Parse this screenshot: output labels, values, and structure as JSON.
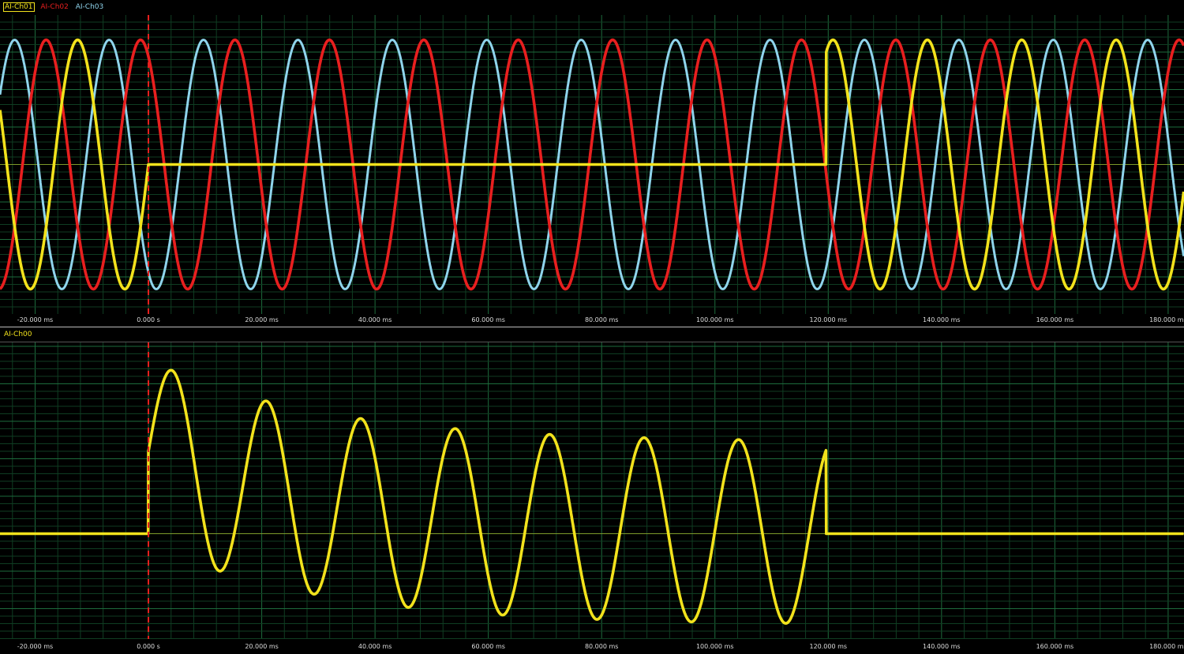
{
  "colors": {
    "ch00": "#f2e21c",
    "ch01": "#f2e21c",
    "ch02": "#e81f1f",
    "ch03": "#8fd4ec",
    "grid_minor": "#0f3d22",
    "grid_major": "#1d6b3c",
    "zero_line": "#7d9a2a",
    "trigger": "#e8201e",
    "background": "#000000"
  },
  "top_panel": {
    "legend": [
      "AI-Ch01",
      "AI-Ch02",
      "AI-Ch03"
    ]
  },
  "bottom_panel": {
    "legend": [
      "AI-Ch00"
    ]
  },
  "chart_data": [
    {
      "type": "line",
      "xlim_ms": [
        -26.2,
        182.8
      ],
      "ylim": [
        -1.2,
        1.2
      ],
      "grid": true,
      "x_major_step_ms": 20,
      "x_minor_step_ms": 4,
      "tick_labels": [
        "-20.000 ms",
        "0.000 s",
        "20.000 ms",
        "40.000 ms",
        "60.000 ms",
        "80.000 ms",
        "100.000 ms",
        "120.000 ms",
        "140.000 ms",
        "160.000 ms",
        "180.000 ms"
      ],
      "tick_values_ms": [
        -20,
        0,
        20,
        40,
        60,
        80,
        100,
        120,
        140,
        160,
        180
      ],
      "trigger_ms": 0,
      "legend_position": "top-left",
      "series": [
        {
          "name": "AI-Ch03",
          "color_key": "ch03",
          "frequency_hz": 60,
          "amplitude": 1,
          "phase_deg": -120,
          "dc_offset": 0,
          "tau_ms": 30,
          "off_intervals_ms": []
        },
        {
          "name": "AI-Ch02",
          "color_key": "ch02",
          "frequency_hz": 60,
          "amplitude": 1,
          "phase_deg": 120,
          "dc_offset": 0,
          "tau_ms": 30,
          "off_intervals_ms": []
        },
        {
          "name": "AI-Ch01",
          "color_key": "ch01",
          "frequency_hz": 60,
          "amplitude": 1,
          "phase_deg": 0,
          "dc_offset": 0,
          "tau_ms": 30,
          "off_intervals_ms": [
            [
              0,
              119.6
            ]
          ]
        }
      ]
    },
    {
      "type": "line",
      "xlim_ms": [
        -26.2,
        182.8
      ],
      "ylim": [
        -1.15,
        2.09
      ],
      "grid": true,
      "x_major_step_ms": 20,
      "x_minor_step_ms": 4,
      "tick_labels": [
        "-20.000 ms",
        "0.000 s",
        "20.000 ms",
        "40.000 ms",
        "60.000 ms",
        "80.000 ms",
        "100.000 ms",
        "120.000 ms",
        "140.000 ms",
        "160.000 ms",
        "180.000 ms"
      ],
      "tick_values_ms": [
        -20,
        0,
        20,
        40,
        60,
        80,
        100,
        120,
        140,
        160,
        180
      ],
      "trigger_ms": 0,
      "legend_position": "top-left",
      "series": [
        {
          "name": "AI-Ch00",
          "color_key": "ch00",
          "frequency_hz": 60,
          "amplitude": 1,
          "phase_deg": 0,
          "dc_offset": 0.9,
          "tau_ms": 30,
          "off_intervals_ms": [
            [
              -26.2,
              0
            ],
            [
              119.6,
              182.8
            ]
          ]
        }
      ]
    }
  ]
}
